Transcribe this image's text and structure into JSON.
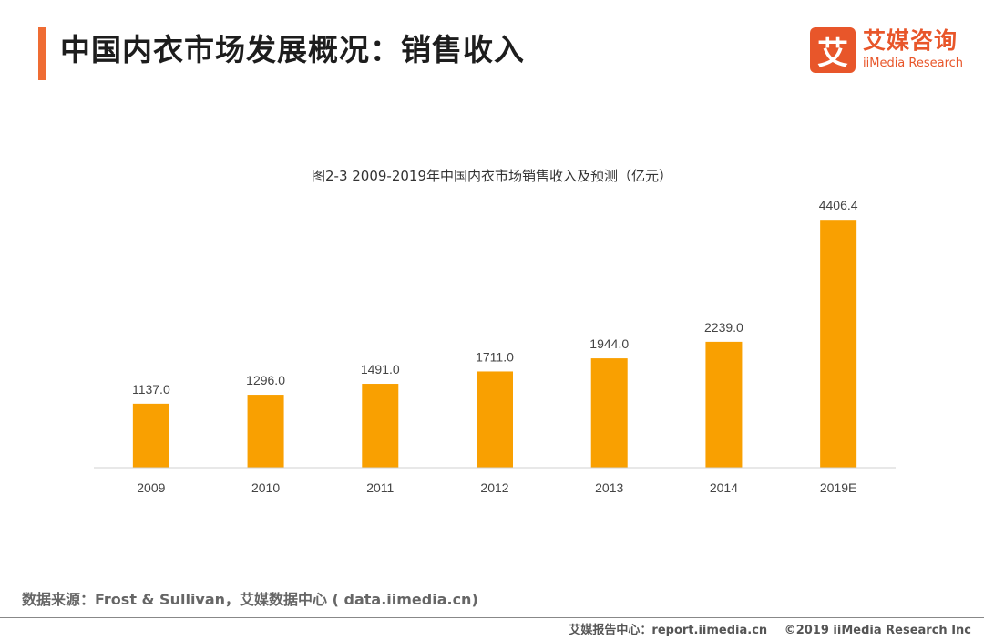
{
  "header": {
    "title": "中国内衣市场发展概况：销售收入",
    "logo_mark": "艾",
    "logo_cn": "艾媒咨询",
    "logo_en": "iiMedia Research"
  },
  "chart_data": {
    "type": "bar",
    "title": "图2-3 2009-2019年中国内衣市场销售收入及预测（亿元）",
    "categories": [
      "2009",
      "2010",
      "2011",
      "2012",
      "2013",
      "2014",
      "2019E"
    ],
    "values": [
      1137.0,
      1296.0,
      1491.0,
      1711.0,
      1944.0,
      2239.0,
      4406.4
    ],
    "value_labels": [
      "1137.0",
      "1296.0",
      "1491.0",
      "1711.0",
      "1944.0",
      "2239.0",
      "4406.4"
    ],
    "bar_color": "#f9a001",
    "ylim": [
      0,
      4750
    ],
    "grid": false,
    "y_axis_visible": false
  },
  "source": "数据来源：Frost & Sullivan，艾媒数据中心 ( data.iimedia.cn)",
  "footer": {
    "report": "艾媒报告中心：report.iimedia.cn",
    "copyright": "©2019  iiMedia Research  Inc"
  }
}
